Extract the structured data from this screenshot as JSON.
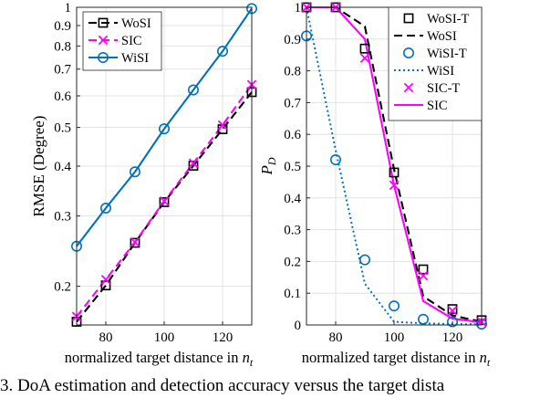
{
  "caption": "3.  DoA estimation and detection accuracy versus the target dista",
  "chart_data": [
    {
      "type": "line",
      "xlabel": "normalized target distance in n_t",
      "ylabel": "RMSE (Degree)",
      "yscale": "log",
      "xlim": [
        70,
        130
      ],
      "ylim": [
        0.16,
        1.0
      ],
      "grid": true,
      "legend_position": "top-left",
      "x_ticks": [
        80,
        100,
        120
      ],
      "y_ticks": [
        0.2,
        0.3,
        0.4,
        0.5,
        0.6,
        0.7,
        0.8,
        0.9,
        1
      ],
      "y_tick_labels": [
        "0.2",
        "0.3",
        "0.4",
        "0.5",
        "0.6",
        "0.7",
        "0.8",
        "0.9",
        "1"
      ],
      "series": [
        {
          "name": "WoSI",
          "color": "#000000",
          "line": "dashed",
          "marker": "square",
          "x": [
            70,
            80,
            90,
            100,
            110,
            120,
            130
          ],
          "values": [
            0.163,
            0.201,
            0.257,
            0.325,
            0.401,
            0.495,
            0.613
          ]
        },
        {
          "name": "SIC",
          "color": "#ff00ff",
          "line": "dashed",
          "marker": "x",
          "x": [
            70,
            80,
            90,
            100,
            110,
            120,
            130
          ],
          "values": [
            0.168,
            0.208,
            0.258,
            0.327,
            0.407,
            0.507,
            0.64
          ]
        },
        {
          "name": "WiSI",
          "color": "#0072bd",
          "line": "solid",
          "marker": "circle",
          "x": [
            70,
            80,
            90,
            100,
            110,
            120,
            130
          ],
          "values": [
            0.252,
            0.314,
            0.387,
            0.496,
            0.621,
            0.776,
            0.993
          ]
        }
      ]
    },
    {
      "type": "line",
      "xlabel": "normalized target distance in n_t",
      "ylabel": "P_D",
      "yscale": "linear",
      "xlim": [
        70,
        130
      ],
      "ylim": [
        0,
        1
      ],
      "grid": true,
      "legend_position": "top-right",
      "x_ticks": [
        80,
        100,
        120
      ],
      "y_ticks": [
        0,
        0.1,
        0.2,
        0.3,
        0.4,
        0.5,
        0.6,
        0.7,
        0.8,
        0.9,
        1
      ],
      "y_tick_labels": [
        "0",
        "0.1",
        "0.2",
        "0.3",
        "0.4",
        "0.5",
        "0.6",
        "0.7",
        "0.8",
        "0.9",
        "1"
      ],
      "series": [
        {
          "name": "WoSI-T",
          "color": "#000000",
          "line": "none",
          "marker": "square",
          "x": [
            70,
            80,
            90,
            100,
            110,
            120,
            130
          ],
          "values": [
            1.0,
            1.0,
            0.87,
            0.48,
            0.175,
            0.05,
            0.015
          ]
        },
        {
          "name": "WoSI",
          "color": "#000000",
          "line": "dashed",
          "marker": "none",
          "x": [
            70,
            80,
            90,
            100,
            110,
            120,
            130
          ],
          "values": [
            1.0,
            1.0,
            0.94,
            0.49,
            0.09,
            0.03,
            0.01
          ]
        },
        {
          "name": "WiSI-T",
          "color": "#0072bd",
          "line": "none",
          "marker": "circle",
          "x": [
            70,
            80,
            90,
            100,
            110,
            120,
            130
          ],
          "values": [
            0.91,
            0.52,
            0.205,
            0.06,
            0.018,
            0.01,
            0.003
          ]
        },
        {
          "name": "WiSI",
          "color": "#0072bd",
          "line": "dotted",
          "marker": "none",
          "x": [
            70,
            80,
            90,
            100,
            110,
            120,
            130
          ],
          "values": [
            1.0,
            0.55,
            0.13,
            0.01,
            0.005,
            0.003,
            0.002
          ]
        },
        {
          "name": "SIC-T",
          "color": "#ff00ff",
          "line": "none",
          "marker": "x",
          "x": [
            70,
            80,
            90,
            100,
            110,
            120,
            130
          ],
          "values": [
            1.0,
            1.0,
            0.84,
            0.44,
            0.155,
            0.045,
            0.01
          ]
        },
        {
          "name": "SIC",
          "color": "#ff00ff",
          "line": "solid",
          "marker": "none",
          "x": [
            70,
            80,
            90,
            100,
            110,
            120,
            130
          ],
          "values": [
            1.0,
            1.0,
            0.9,
            0.44,
            0.075,
            0.02,
            0.008
          ]
        }
      ]
    }
  ]
}
